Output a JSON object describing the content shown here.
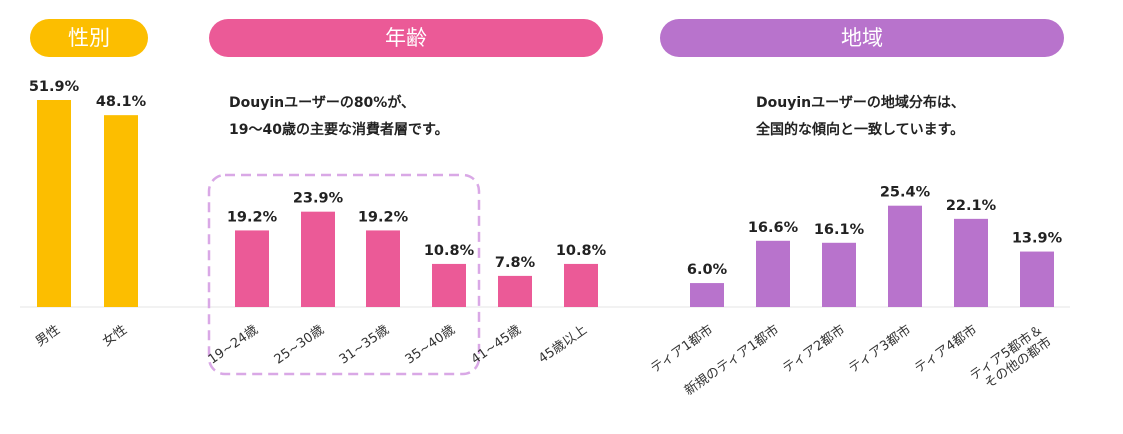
{
  "headers": {
    "gender": "性別",
    "age": "年齢",
    "region": "地域"
  },
  "notes": {
    "age": [
      "Douyinユーザーの80%が、",
      "19～40歳の主要な消費者層です。"
    ],
    "region": [
      "Douyinユーザーの地域分布は、",
      "全国的な傾向と一致しています。"
    ]
  },
  "colors": {
    "gender": "#FCBE00",
    "age": "#EB5A97",
    "region": "#B873CC",
    "highlight_box": "#D9A8E6",
    "baseline": "#e6e6e6"
  },
  "chart_data": [
    {
      "type": "bar",
      "title": "性別",
      "categories": [
        "男性",
        "女性"
      ],
      "values": [
        51.9,
        48.1
      ],
      "value_labels": [
        "51.9%",
        "48.1%"
      ],
      "unit": "%",
      "ylim": [
        0,
        55
      ]
    },
    {
      "type": "bar",
      "title": "年齢",
      "categories": [
        "19~24歳",
        "25~30歳",
        "31~35歳",
        "35~40歳",
        "41~45歳",
        "45歳以上"
      ],
      "values": [
        19.2,
        23.9,
        19.2,
        10.8,
        7.8,
        10.8
      ],
      "value_labels": [
        "19.2%",
        "23.9%",
        "19.2%",
        "10.8%",
        "7.8%",
        "10.8%"
      ],
      "unit": "%",
      "ylim": [
        0,
        55
      ],
      "highlighted_categories": [
        "19~24歳",
        "25~30歳",
        "31~35歳",
        "35~40歳"
      ]
    },
    {
      "type": "bar",
      "title": "地域",
      "categories": [
        "ティア1都市",
        "新規のティア1都市",
        "ティア2都市",
        "ティア3都市",
        "ティア4都市",
        "ティア5都市＆その他の都市"
      ],
      "category_lines": [
        [
          "ティア1都市"
        ],
        [
          "新規のティア1都市"
        ],
        [
          "ティア2都市"
        ],
        [
          "ティア3都市"
        ],
        [
          "ティア4都市"
        ],
        [
          "ティア5都市＆",
          "その他の都市"
        ]
      ],
      "values": [
        6.0,
        16.6,
        16.1,
        25.4,
        22.1,
        13.9
      ],
      "value_labels": [
        "6.0%",
        "16.6%",
        "16.1%",
        "25.4%",
        "22.1%",
        "13.9%"
      ],
      "unit": "%",
      "ylim": [
        0,
        55
      ]
    }
  ]
}
